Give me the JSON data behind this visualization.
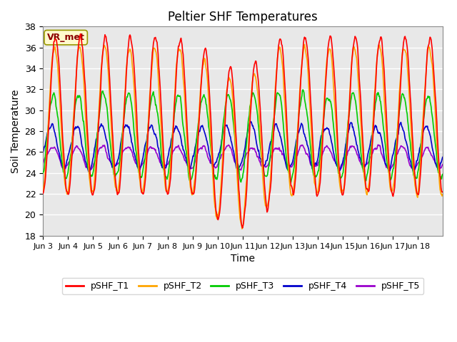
{
  "title": "Peltier SHF Temperatures",
  "xlabel": "Time",
  "ylabel": "Soil Temperature",
  "ylim": [
    18,
    38
  ],
  "yticks": [
    18,
    20,
    22,
    24,
    26,
    28,
    30,
    32,
    34,
    36,
    38
  ],
  "xtick_labels": [
    "Jun 3",
    "Jun 4",
    "Jun 5",
    "Jun 6",
    "Jun 7",
    "Jun 8",
    "Jun 9",
    "Jun 10",
    "Jun 11",
    "Jun 12",
    "Jun 13",
    "Jun 14",
    "Jun 15",
    "Jun 16",
    "Jun 17",
    "Jun 18"
  ],
  "annotation_text": "VR_met",
  "annotation_color": "#8B0000",
  "annotation_bg": "#FFFACD",
  "annotation_edge": "#999900",
  "colors": {
    "pSHF_T1": "#FF0000",
    "pSHF_T2": "#FFA500",
    "pSHF_T3": "#00CC00",
    "pSHF_T4": "#0000CC",
    "pSHF_T5": "#9900CC"
  },
  "bg_color": "#E8E8E8",
  "grid_color": "#FFFFFF",
  "n_days": 16,
  "points_per_day": 48
}
